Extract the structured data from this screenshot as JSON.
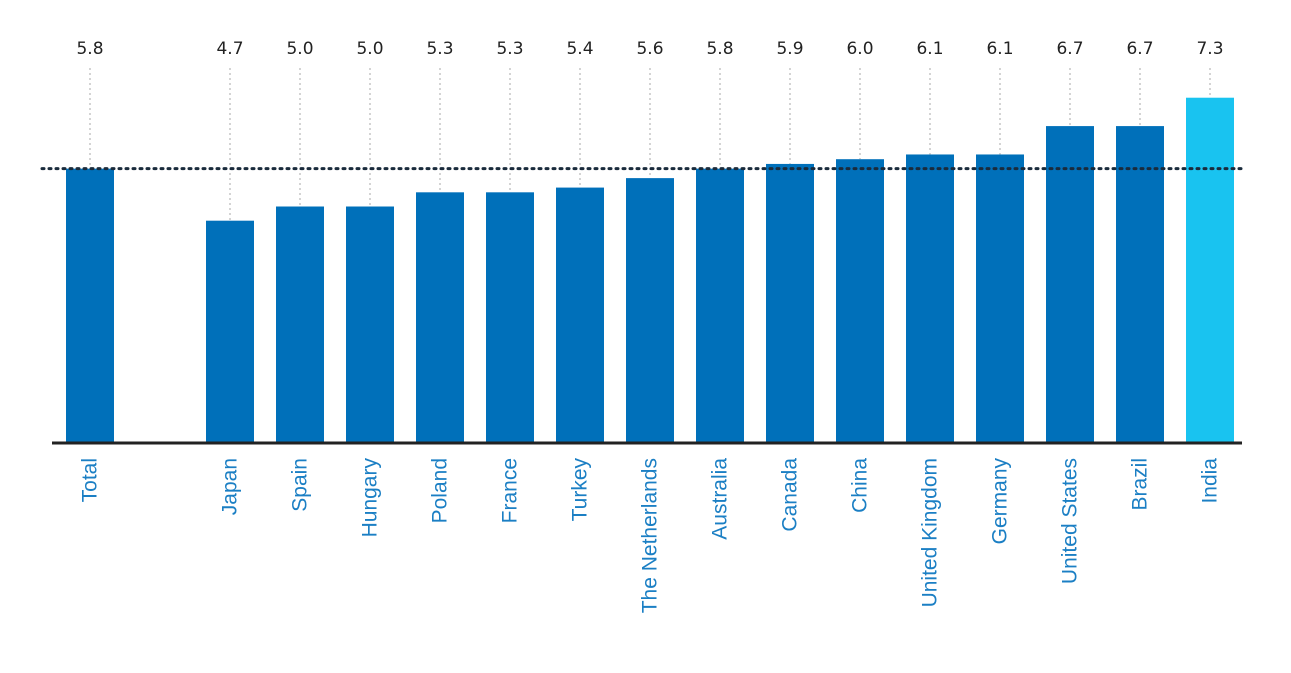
{
  "chart_data": {
    "type": "bar",
    "title": "",
    "xlabel": "",
    "ylabel": "",
    "ylim": [
      0,
      7.5
    ],
    "categories": [
      "Total",
      "Japan",
      "Spain",
      "Hungary",
      "Poland",
      "France",
      "Turkey",
      "The Netherlands",
      "Australia",
      "Canada",
      "China",
      "United Kingdom",
      "Germany",
      "United States",
      "Brazil",
      "India"
    ],
    "values": [
      5.8,
      4.7,
      5.0,
      5.0,
      5.3,
      5.3,
      5.4,
      5.6,
      5.8,
      5.9,
      6.0,
      6.1,
      6.1,
      6.7,
      6.7,
      7.3
    ],
    "value_labels": [
      "5.8",
      "4.7",
      "5.0",
      "5.0",
      "5.3",
      "5.3",
      "5.4",
      "5.6",
      "5.8",
      "5.9",
      "6.0",
      "6.1",
      "6.1",
      "6.7",
      "6.7",
      "7.3"
    ],
    "reference_line": {
      "value": 5.8,
      "style": "dotted"
    },
    "highlight_category": "India",
    "gap_after_category": "Total",
    "grid": false,
    "colors": {
      "bar": "#0070BA",
      "highlight": "#19C3F0",
      "label_text": "#1B7FC4",
      "axis": "#222222",
      "reference_line": "#1A2B3C",
      "leader_line": "#AAAAAA"
    }
  }
}
